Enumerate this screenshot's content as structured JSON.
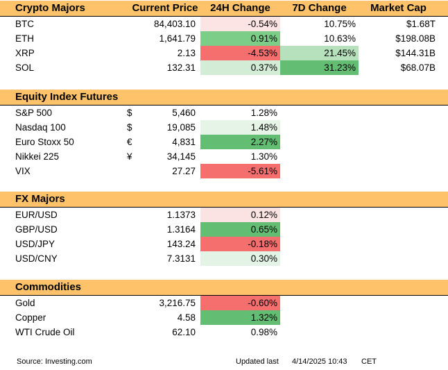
{
  "sections": [
    {
      "title": "Crypto Majors",
      "headers": [
        "Current Price",
        "24H Change",
        "7D Change",
        "Market Cap"
      ],
      "rows": [
        {
          "name": "BTC",
          "cur": "",
          "price": "84,403.10",
          "ch24": "-0.54%",
          "bg24": "#fce4e4",
          "ch7": "10.75%",
          "bg7": "",
          "mc": "$1.68T"
        },
        {
          "name": "ETH",
          "cur": "",
          "price": "1,641.79",
          "ch24": "0.91%",
          "bg24": "#7ccd87",
          "ch7": "10.63%",
          "bg7": "",
          "mc": "$198.08B"
        },
        {
          "name": "XRP",
          "cur": "",
          "price": "2.13",
          "ch24": "-4.53%",
          "bg24": "#f56f6f",
          "ch7": "21.45%",
          "bg7": "#b7e1bd",
          "mc": "$144.31B"
        },
        {
          "name": "SOL",
          "cur": "",
          "price": "132.31",
          "ch24": "0.37%",
          "bg24": "#d3ecd6",
          "ch7": "31.23%",
          "bg7": "#63be73",
          "mc": "$68.07B"
        }
      ]
    },
    {
      "title": "Equity Index Futures",
      "headers": [],
      "rows": [
        {
          "name": "S&P 500",
          "cur": "$",
          "price": "5,460",
          "ch24": "1.28%",
          "bg24": "",
          "ch7": "",
          "bg7": "",
          "mc": ""
        },
        {
          "name": "Nasdaq 100",
          "cur": "$",
          "price": "19,085",
          "ch24": "1.48%",
          "bg24": "#e5f4e7",
          "ch7": "",
          "bg7": "",
          "mc": ""
        },
        {
          "name": "Euro Stoxx 50",
          "cur": "€",
          "price": "4,831",
          "ch24": "2.27%",
          "bg24": "#63be73",
          "ch7": "",
          "bg7": "",
          "mc": ""
        },
        {
          "name": "Nikkei 225",
          "cur": "¥",
          "price": "34,145",
          "ch24": "1.30%",
          "bg24": "",
          "ch7": "",
          "bg7": "",
          "mc": ""
        },
        {
          "name": "VIX",
          "cur": "",
          "price": "27.27",
          "ch24": "-5.61%",
          "bg24": "#f56f6f",
          "ch7": "",
          "bg7": "",
          "mc": ""
        }
      ]
    },
    {
      "title": "FX Majors",
      "headers": [],
      "rows": [
        {
          "name": "EUR/USD",
          "cur": "",
          "price": "1.1373",
          "ch24": "0.12%",
          "bg24": "#fbe3e3",
          "ch7": "",
          "bg7": "",
          "mc": ""
        },
        {
          "name": "GBP/USD",
          "cur": "",
          "price": "1.3164",
          "ch24": "0.65%",
          "bg24": "#63be73",
          "ch7": "",
          "bg7": "",
          "mc": ""
        },
        {
          "name": "USD/JPY",
          "cur": "",
          "price": "143.24",
          "ch24": "-0.18%",
          "bg24": "#f56f6f",
          "ch7": "",
          "bg7": "",
          "mc": ""
        },
        {
          "name": "USD/CNY",
          "cur": "",
          "price": "7.3131",
          "ch24": "0.30%",
          "bg24": "#e3f3e5",
          "ch7": "",
          "bg7": "",
          "mc": ""
        }
      ]
    },
    {
      "title": "Commodities",
      "headers": [],
      "rows": [
        {
          "name": "Gold",
          "cur": "",
          "price": "3,216.75",
          "ch24": "-0.60%",
          "bg24": "#f56f6f",
          "ch7": "",
          "bg7": "",
          "mc": ""
        },
        {
          "name": "Copper",
          "cur": "",
          "price": "4.58",
          "ch24": "1.32%",
          "bg24": "#63be73",
          "ch7": "",
          "bg7": "",
          "mc": ""
        },
        {
          "name": "WTI Crude Oil",
          "cur": "",
          "price": "62.10",
          "ch24": "0.98%",
          "bg24": "",
          "ch7": "",
          "bg7": "",
          "mc": ""
        }
      ]
    }
  ],
  "footer": {
    "source": "Source: Investing.com",
    "updated_label": "Updated last",
    "updated_value": "4/14/2025 10:43",
    "timezone": "CET"
  },
  "colors": {
    "header_bg": "#fdc26a"
  }
}
